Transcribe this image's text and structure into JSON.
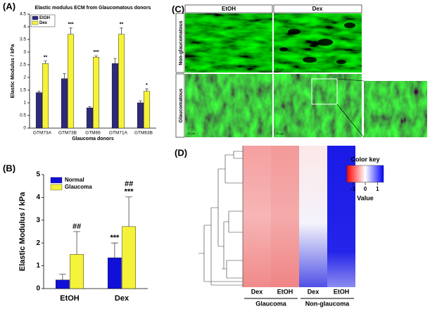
{
  "panels": {
    "A": "(A)",
    "B": "(B)",
    "C": "(C)",
    "D": "(D)"
  },
  "chart_data": [
    {
      "type": "bar",
      "title": "Elastic modulus ECM from Glaucomatous donors",
      "x_label": "Glaucoma donors",
      "y_label": "Elastic Modulus / kPa",
      "categories": [
        "GTM73A",
        "GTM73B",
        "GTM66",
        "GTM71A",
        "GTM63B"
      ],
      "series": [
        {
          "name": "EtOH",
          "color": "#2e2a7a",
          "values": [
            1.4,
            1.95,
            0.8,
            2.55,
            1.0
          ],
          "errors": [
            0.05,
            0.2,
            0.05,
            0.2,
            0.08
          ],
          "annotations": [
            [],
            [],
            [],
            [],
            []
          ]
        },
        {
          "name": "Dex",
          "color": "#f5f23a",
          "values": [
            2.55,
            3.7,
            2.8,
            3.7,
            1.45
          ],
          "errors": [
            0.1,
            0.25,
            0.05,
            0.25,
            0.1
          ],
          "annotations": [
            [
              "**"
            ],
            [
              "***"
            ],
            [
              "***"
            ],
            [
              "**"
            ],
            [
              "*"
            ]
          ]
        }
      ],
      "ylim": [
        0,
        4.5
      ],
      "yticks": [
        0,
        0.5,
        1,
        1.5,
        2,
        2.5,
        3,
        3.5,
        4,
        4.5
      ],
      "legend": "top-left"
    },
    {
      "type": "bar",
      "y_label": "Elastic Modulus / kPa",
      "categories": [
        "EtOH",
        "Dex"
      ],
      "series": [
        {
          "name": "Normal",
          "color": "#1010d8",
          "values": [
            0.38,
            1.35
          ],
          "errors": [
            0.25,
            0.65
          ],
          "annotations": [
            [],
            [
              "***"
            ]
          ]
        },
        {
          "name": "Glaucoma",
          "color": "#f5f23a",
          "values": [
            1.5,
            2.72
          ],
          "errors": [
            1.0,
            1.3
          ],
          "annotations": [
            [
              "##"
            ],
            [
              "##",
              "***"
            ]
          ]
        }
      ],
      "ylim": [
        0,
        5
      ],
      "yticks": [
        0,
        1,
        2,
        3,
        4,
        5
      ],
      "legend": "top-left"
    }
  ],
  "image_panel": {
    "columns": [
      "EtOH",
      "Dex"
    ],
    "rows": [
      "Non-glaucomatous",
      "Glaucomatous"
    ],
    "scale_bar": "20 µm"
  },
  "heatmap": {
    "columns": [
      "Dex",
      "EtOH",
      "Dex",
      "EtOH"
    ],
    "groups": [
      "Glaucoma",
      "Non-glaucoma"
    ],
    "color_key": {
      "title": "Color key",
      "label": "Value",
      "lim": [
        -1.5,
        1.5
      ],
      "ticks": [
        -1,
        0,
        1
      ]
    }
  }
}
